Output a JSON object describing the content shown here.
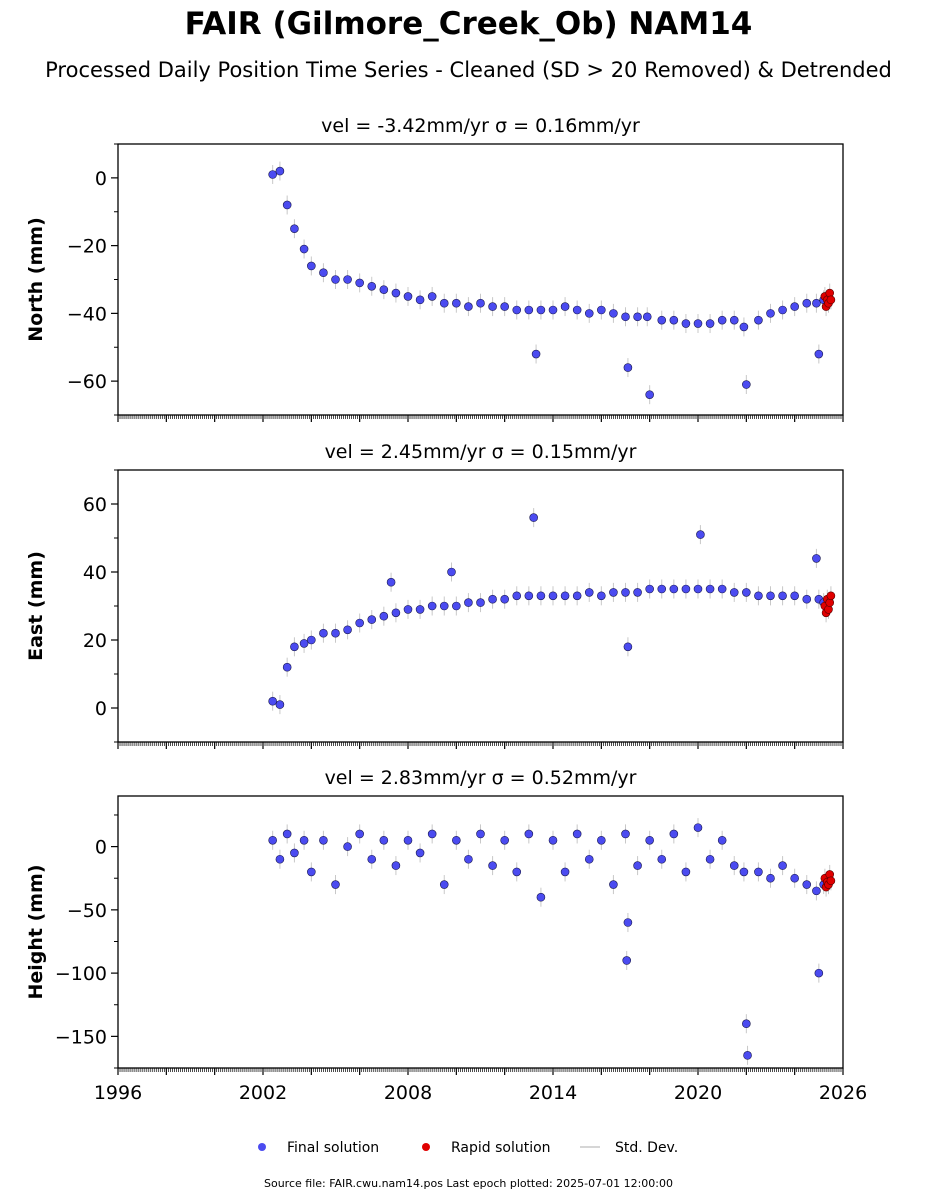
{
  "header": {
    "title": "FAIR (Gilmore_Creek_Ob) NAM14",
    "subtitle": "Processed Daily Position Time Series - Cleaned (SD > 20 Removed) & Detrended"
  },
  "footer": {
    "text": "Source file: FAIR.cwu.nam14.pos  Last epoch plotted: 2025-07-01 12:00:00"
  },
  "legend": {
    "items": [
      {
        "label": "Final solution",
        "color": "#4b4bf0"
      },
      {
        "label": "Rapid solution",
        "color": "#e00000"
      },
      {
        "label": "Std. Dev.",
        "color": "#c8c8c8"
      }
    ]
  },
  "chart_data": [
    {
      "type": "scatter",
      "title": "vel = -3.42mm/yr   σ = 0.16mm/yr",
      "ylabel": "North (mm)",
      "xlim": [
        1996,
        2026
      ],
      "ylim": [
        -70,
        10
      ],
      "yticks": [
        0,
        -20,
        -40,
        -60
      ],
      "grid": false,
      "series": [
        {
          "name": "Final solution",
          "color": "#4b4bf0",
          "x": [
            2002.4,
            2002.7,
            2003.0,
            2003.3,
            2003.7,
            2004.0,
            2004.5,
            2005.0,
            2005.5,
            2006.0,
            2006.5,
            2007.0,
            2007.5,
            2008.0,
            2008.5,
            2009.0,
            2009.5,
            2010.0,
            2010.5,
            2011.0,
            2011.5,
            2012.0,
            2012.5,
            2013.0,
            2013.3,
            2013.5,
            2014.0,
            2014.5,
            2015.0,
            2015.5,
            2016.0,
            2016.5,
            2017.0,
            2017.1,
            2017.5,
            2017.9,
            2018.0,
            2018.5,
            2019.0,
            2019.5,
            2020.0,
            2020.5,
            2021.0,
            2021.5,
            2021.9,
            2022.0,
            2022.5,
            2023.0,
            2023.5,
            2024.0,
            2024.5,
            2024.9,
            2025.0,
            2025.2
          ],
          "y": [
            1,
            2,
            -8,
            -15,
            -21,
            -26,
            -28,
            -30,
            -30,
            -31,
            -32,
            -33,
            -34,
            -35,
            -36,
            -35,
            -37,
            -37,
            -38,
            -37,
            -38,
            -38,
            -39,
            -39,
            -52,
            -39,
            -39,
            -38,
            -39,
            -40,
            -39,
            -40,
            -41,
            -56,
            -41,
            -41,
            -64,
            -42,
            -42,
            -43,
            -43,
            -43,
            -42,
            -42,
            -44,
            -61,
            -42,
            -40,
            -39,
            -38,
            -37,
            -37,
            -52,
            -36
          ]
        },
        {
          "name": "Rapid solution",
          "color": "#e00000",
          "x": [
            2025.25,
            2025.3,
            2025.35,
            2025.4,
            2025.45,
            2025.5
          ],
          "y": [
            -35,
            -38,
            -36,
            -37,
            -34,
            -36
          ]
        }
      ]
    },
    {
      "type": "scatter",
      "title": "vel = 2.45mm/yr   σ = 0.15mm/yr",
      "ylabel": "East (mm)",
      "xlim": [
        1996,
        2026
      ],
      "ylim": [
        -10,
        70
      ],
      "yticks": [
        0,
        20,
        40,
        60
      ],
      "grid": false,
      "series": [
        {
          "name": "Final solution",
          "color": "#4b4bf0",
          "x": [
            2002.4,
            2002.7,
            2003.0,
            2003.3,
            2003.7,
            2004.0,
            2004.5,
            2005.0,
            2005.5,
            2006.0,
            2006.5,
            2007.0,
            2007.3,
            2007.5,
            2008.0,
            2008.5,
            2009.0,
            2009.5,
            2009.8,
            2010.0,
            2010.5,
            2011.0,
            2011.5,
            2012.0,
            2012.5,
            2013.0,
            2013.2,
            2013.5,
            2014.0,
            2014.5,
            2015.0,
            2015.5,
            2016.0,
            2016.5,
            2017.0,
            2017.1,
            2017.5,
            2018.0,
            2018.5,
            2019.0,
            2019.5,
            2020.0,
            2020.1,
            2020.5,
            2021.0,
            2021.5,
            2022.0,
            2022.5,
            2023.0,
            2023.5,
            2024.0,
            2024.5,
            2024.9,
            2025.0,
            2025.2
          ],
          "y": [
            2,
            1,
            12,
            18,
            19,
            20,
            22,
            22,
            23,
            25,
            26,
            27,
            37,
            28,
            29,
            29,
            30,
            30,
            40,
            30,
            31,
            31,
            32,
            32,
            33,
            33,
            56,
            33,
            33,
            33,
            33,
            34,
            33,
            34,
            34,
            18,
            34,
            35,
            35,
            35,
            35,
            35,
            51,
            35,
            35,
            34,
            34,
            33,
            33,
            33,
            33,
            32,
            44,
            32,
            31
          ]
        },
        {
          "name": "Rapid solution",
          "color": "#e00000",
          "x": [
            2025.25,
            2025.3,
            2025.35,
            2025.4,
            2025.45,
            2025.5
          ],
          "y": [
            30,
            28,
            32,
            29,
            31,
            33
          ]
        }
      ]
    },
    {
      "type": "scatter",
      "title": "vel = 2.83mm/yr   σ = 0.52mm/yr",
      "ylabel": "Height (mm)",
      "xlim": [
        1996,
        2026
      ],
      "xticks": [
        1996,
        2002,
        2008,
        2014,
        2020,
        2026
      ],
      "ylim": [
        -175,
        40
      ],
      "yticks": [
        0,
        -50,
        -100,
        -150
      ],
      "grid": false,
      "series": [
        {
          "name": "Final solution",
          "color": "#4b4bf0",
          "x": [
            2002.4,
            2002.7,
            2003.0,
            2003.3,
            2003.7,
            2004.0,
            2004.5,
            2005.0,
            2005.5,
            2006.0,
            2006.5,
            2007.0,
            2007.5,
            2008.0,
            2008.5,
            2009.0,
            2009.5,
            2010.0,
            2010.5,
            2011.0,
            2011.5,
            2012.0,
            2012.5,
            2013.0,
            2013.5,
            2014.0,
            2014.5,
            2015.0,
            2015.5,
            2016.0,
            2016.5,
            2017.0,
            2017.05,
            2017.1,
            2017.5,
            2018.0,
            2018.5,
            2019.0,
            2019.5,
            2020.0,
            2020.5,
            2021.0,
            2021.5,
            2021.9,
            2022.0,
            2022.05,
            2022.5,
            2023.0,
            2023.5,
            2024.0,
            2024.5,
            2024.9,
            2025.0,
            2025.2
          ],
          "y": [
            5,
            -10,
            10,
            -5,
            5,
            -20,
            5,
            -30,
            0,
            10,
            -10,
            5,
            -15,
            5,
            -5,
            10,
            -30,
            5,
            -10,
            10,
            -15,
            5,
            -20,
            10,
            -40,
            5,
            -20,
            10,
            -10,
            5,
            -30,
            10,
            -90,
            -60,
            -15,
            5,
            -10,
            10,
            -20,
            15,
            -10,
            5,
            -15,
            -20,
            -140,
            -165,
            -20,
            -25,
            -15,
            -25,
            -30,
            -35,
            -100,
            -30
          ]
        },
        {
          "name": "Rapid solution",
          "color": "#e00000",
          "x": [
            2025.25,
            2025.3,
            2025.35,
            2025.4,
            2025.45,
            2025.5
          ],
          "y": [
            -25,
            -32,
            -28,
            -30,
            -22,
            -27
          ]
        }
      ]
    }
  ]
}
